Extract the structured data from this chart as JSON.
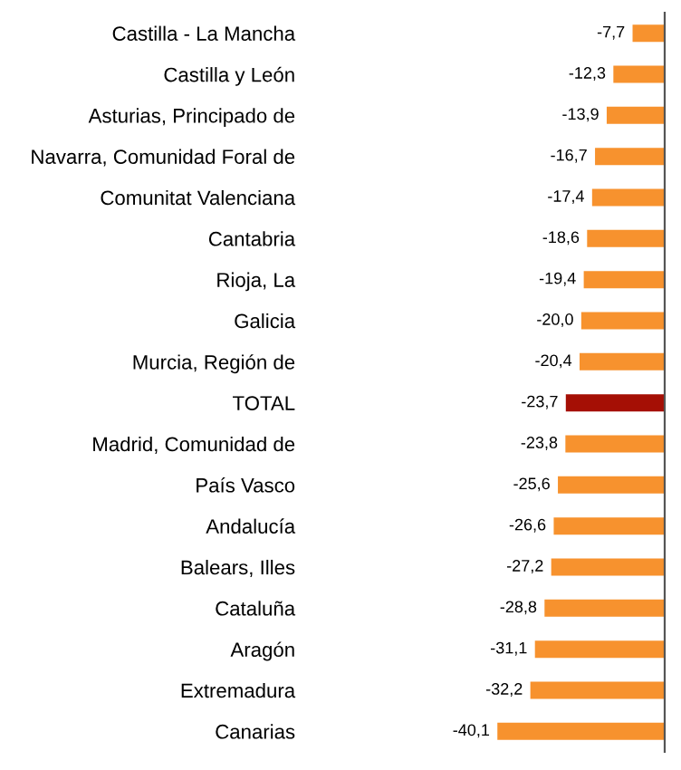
{
  "chart_data": {
    "type": "bar",
    "orientation": "horizontal",
    "categories": [
      "Castilla - La Mancha",
      "Castilla y León",
      "Asturias, Principado de",
      "Navarra, Comunidad Foral de",
      "Comunitat Valenciana",
      "Cantabria",
      "Rioja, La",
      "Galicia",
      "Murcia, Región de",
      "TOTAL",
      "Madrid, Comunidad de",
      "País Vasco",
      "Andalucía",
      "Balears, Illes",
      "Cataluña",
      "Aragón",
      "Extremadura",
      "Canarias"
    ],
    "values": [
      -7.7,
      -12.3,
      -13.9,
      -16.7,
      -17.4,
      -18.6,
      -19.4,
      -20.0,
      -20.4,
      -23.7,
      -23.8,
      -25.6,
      -26.6,
      -27.2,
      -28.8,
      -31.1,
      -32.2,
      -40.1
    ],
    "value_labels": [
      "-7,7",
      "-12,3",
      "-13,9",
      "-16,7",
      "-17,4",
      "-18,6",
      "-19,4",
      "-20,0",
      "-20,4",
      "-23,7",
      "-23,8",
      "-25,6",
      "-26,6",
      "-27,2",
      "-28,8",
      "-31,1",
      "-32,2",
      "-40,1"
    ],
    "colors": [
      "#f7922e",
      "#f7922e",
      "#f7922e",
      "#f7922e",
      "#f7922e",
      "#f7922e",
      "#f7922e",
      "#f7922e",
      "#f7922e",
      "#a50f05",
      "#f7922e",
      "#f7922e",
      "#f7922e",
      "#f7922e",
      "#f7922e",
      "#f7922e",
      "#f7922e",
      "#f7922e"
    ],
    "tick_labels": "y",
    "grid": false,
    "legend": false
  }
}
